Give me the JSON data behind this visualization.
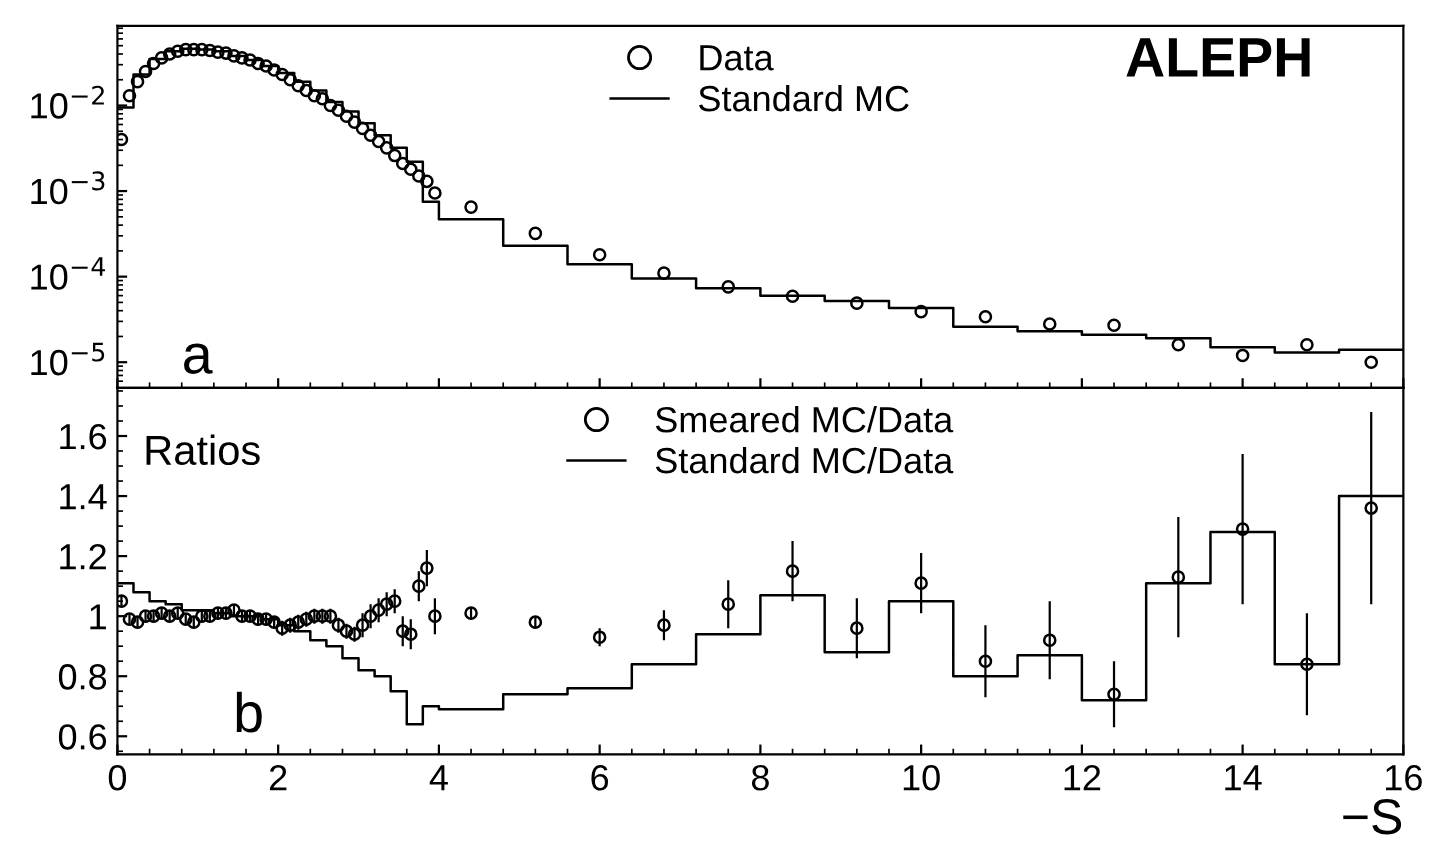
{
  "chart_data": [
    {
      "type": "scatter",
      "log": "y",
      "xlim": [
        0,
        16
      ],
      "ylim": [
        5e-06,
        0.085
      ],
      "xticks": [
        0,
        2,
        4,
        6,
        8,
        10,
        12,
        14,
        16
      ],
      "yticks": [
        {
          "value": 1e-05,
          "label": "10$^{−5}$"
        },
        {
          "value": 0.0001,
          "label": "10$^{−4}$"
        },
        {
          "value": 0.001,
          "label": "10$^{−3}$"
        },
        {
          "value": 0.01,
          "label": "10$^{−2}$"
        }
      ],
      "tick_labels": "y",
      "legend": "top",
      "grid": false,
      "annotations": [
        "ALEPH",
        "a"
      ],
      "series": [
        {
          "name": "Data",
          "marker": "circle",
          "color": "#000000",
          "x": [
            0.05,
            0.15,
            0.25,
            0.35,
            0.45,
            0.55,
            0.65,
            0.75,
            0.85,
            0.95,
            1.05,
            1.15,
            1.25,
            1.35,
            1.45,
            1.55,
            1.65,
            1.75,
            1.85,
            1.95,
            2.05,
            2.15,
            2.25,
            2.35,
            2.45,
            2.55,
            2.65,
            2.75,
            2.85,
            2.95,
            3.05,
            3.15,
            3.25,
            3.35,
            3.45,
            3.55,
            3.65,
            3.75,
            3.85,
            3.95,
            4.4,
            5.2,
            6.0,
            6.8,
            7.6,
            8.4,
            9.2,
            10.0,
            10.8,
            11.6,
            12.4,
            13.2,
            14.0,
            14.8,
            15.6
          ],
          "values": [
            0.004,
            0.013,
            0.019,
            0.025,
            0.031,
            0.036,
            0.04,
            0.043,
            0.045,
            0.045,
            0.045,
            0.044,
            0.042,
            0.041,
            0.038,
            0.036,
            0.034,
            0.031,
            0.029,
            0.026,
            0.023,
            0.02,
            0.017,
            0.015,
            0.013,
            0.012,
            0.01,
            0.0088,
            0.0075,
            0.0064,
            0.0054,
            0.0045,
            0.0038,
            0.0032,
            0.0026,
            0.0021,
            0.0018,
            0.0015,
            0.0013,
            0.00095,
            0.00065,
            0.00032,
            0.00018,
            0.00011,
            7.6e-05,
            5.9e-05,
            4.9e-05,
            3.9e-05,
            3.4e-05,
            2.8e-05,
            2.7e-05,
            1.6e-05,
            1.2e-05,
            1.6e-05,
            1e-05
          ]
        },
        {
          "name": "Standard MC",
          "type": "step",
          "color": "#000000",
          "x": [
            0,
            0.2,
            0.4,
            0.6,
            0.8,
            1.0,
            1.2,
            1.4,
            1.6,
            1.8,
            2.0,
            2.2,
            2.4,
            2.6,
            2.8,
            3.0,
            3.2,
            3.4,
            3.6,
            3.8,
            4.0,
            4.8,
            5.6,
            6.4,
            7.2,
            8.0,
            8.8,
            9.6,
            10.4,
            11.2,
            12.0,
            12.8,
            13.6,
            14.4,
            15.2,
            16.0
          ],
          "values": [
            0.0095,
            0.023,
            0.035,
            0.043,
            0.046,
            0.045,
            0.043,
            0.038,
            0.034,
            0.029,
            0.024,
            0.019,
            0.015,
            0.011,
            0.0085,
            0.0062,
            0.0045,
            0.0032,
            0.0022,
            0.00075,
            0.00047,
            0.00023,
            0.00014,
            9.5e-05,
            7.3e-05,
            6e-05,
            5.2e-05,
            4.3e-05,
            2.6e-05,
            2.3e-05,
            2.1e-05,
            1.9e-05,
            1.5e-05,
            1.3e-05,
            1.4e-05,
            1.4e-05
          ]
        }
      ]
    },
    {
      "type": "scatter",
      "xlim": [
        0,
        16
      ],
      "ylim": [
        0.54,
        1.76
      ],
      "xticks": [
        0,
        2,
        4,
        6,
        8,
        10,
        12,
        14,
        16
      ],
      "yticks": [
        0.6,
        0.8,
        1,
        1.2,
        1.4,
        1.6
      ],
      "xlabel": "−S",
      "legend": "top",
      "grid": false,
      "annotations": [
        "Ratios",
        "b"
      ],
      "series": [
        {
          "name": "Smeared MC/Data",
          "marker": "circle",
          "color": "#000000",
          "x": [
            0.05,
            0.15,
            0.25,
            0.35,
            0.45,
            0.55,
            0.65,
            0.75,
            0.85,
            0.95,
            1.05,
            1.15,
            1.25,
            1.35,
            1.45,
            1.55,
            1.65,
            1.75,
            1.85,
            1.95,
            2.05,
            2.15,
            2.25,
            2.35,
            2.45,
            2.55,
            2.65,
            2.75,
            2.85,
            2.95,
            3.05,
            3.15,
            3.25,
            3.35,
            3.45,
            3.55,
            3.65,
            3.75,
            3.85,
            3.95,
            4.4,
            5.2,
            6.0,
            6.8,
            7.6,
            8.4,
            9.2,
            10.0,
            10.8,
            11.6,
            12.4,
            13.2,
            14.0,
            14.8,
            15.6
          ],
          "values": [
            1.05,
            0.99,
            0.98,
            1.0,
            1.0,
            1.01,
            1.0,
            1.01,
            0.99,
            0.98,
            1.0,
            1.0,
            1.01,
            1.01,
            1.02,
            1.0,
            1.0,
            0.99,
            0.99,
            0.98,
            0.96,
            0.97,
            0.98,
            0.99,
            1.0,
            1.0,
            1.0,
            0.97,
            0.95,
            0.94,
            0.97,
            1.0,
            1.02,
            1.04,
            1.05,
            0.95,
            0.94,
            1.1,
            1.16,
            1.0,
            1.01,
            0.98,
            0.93,
            0.97,
            1.04,
            1.15,
            0.96,
            1.11,
            0.85,
            0.92,
            0.74,
            1.13,
            1.29,
            0.84,
            1.36
          ],
          "errors": [
            0.02,
            0.02,
            0.02,
            0.02,
            0.02,
            0.02,
            0.02,
            0.02,
            0.02,
            0.02,
            0.02,
            0.02,
            0.02,
            0.02,
            0.02,
            0.02,
            0.02,
            0.02,
            0.02,
            0.02,
            0.025,
            0.025,
            0.025,
            0.025,
            0.025,
            0.025,
            0.025,
            0.025,
            0.025,
            0.025,
            0.04,
            0.04,
            0.04,
            0.04,
            0.04,
            0.05,
            0.05,
            0.05,
            0.06,
            0.06,
            0.02,
            0.02,
            0.03,
            0.05,
            0.08,
            0.1,
            0.1,
            0.1,
            0.12,
            0.13,
            0.11,
            0.2,
            0.25,
            0.17,
            0.32
          ]
        },
        {
          "name": "Standard MC/Data",
          "type": "step",
          "color": "#000000",
          "x": [
            0,
            0.2,
            0.4,
            0.6,
            0.8,
            1.0,
            1.2,
            1.4,
            1.6,
            1.8,
            2.0,
            2.2,
            2.4,
            2.6,
            2.8,
            3.0,
            3.2,
            3.4,
            3.6,
            3.8,
            4.0,
            4.8,
            5.6,
            6.4,
            7.2,
            8.0,
            8.8,
            9.6,
            10.4,
            11.2,
            12.0,
            12.8,
            13.6,
            14.4,
            15.2,
            16.0
          ],
          "values": [
            1.11,
            1.08,
            1.05,
            1.04,
            1.02,
            1.02,
            1.01,
            1.0,
            1.0,
            0.99,
            0.97,
            0.95,
            0.92,
            0.9,
            0.86,
            0.82,
            0.8,
            0.75,
            0.64,
            0.7,
            0.69,
            0.74,
            0.76,
            0.84,
            0.94,
            1.07,
            0.88,
            1.05,
            0.8,
            0.87,
            0.72,
            1.11,
            1.28,
            0.84,
            1.4,
            1.4
          ]
        }
      ]
    }
  ]
}
